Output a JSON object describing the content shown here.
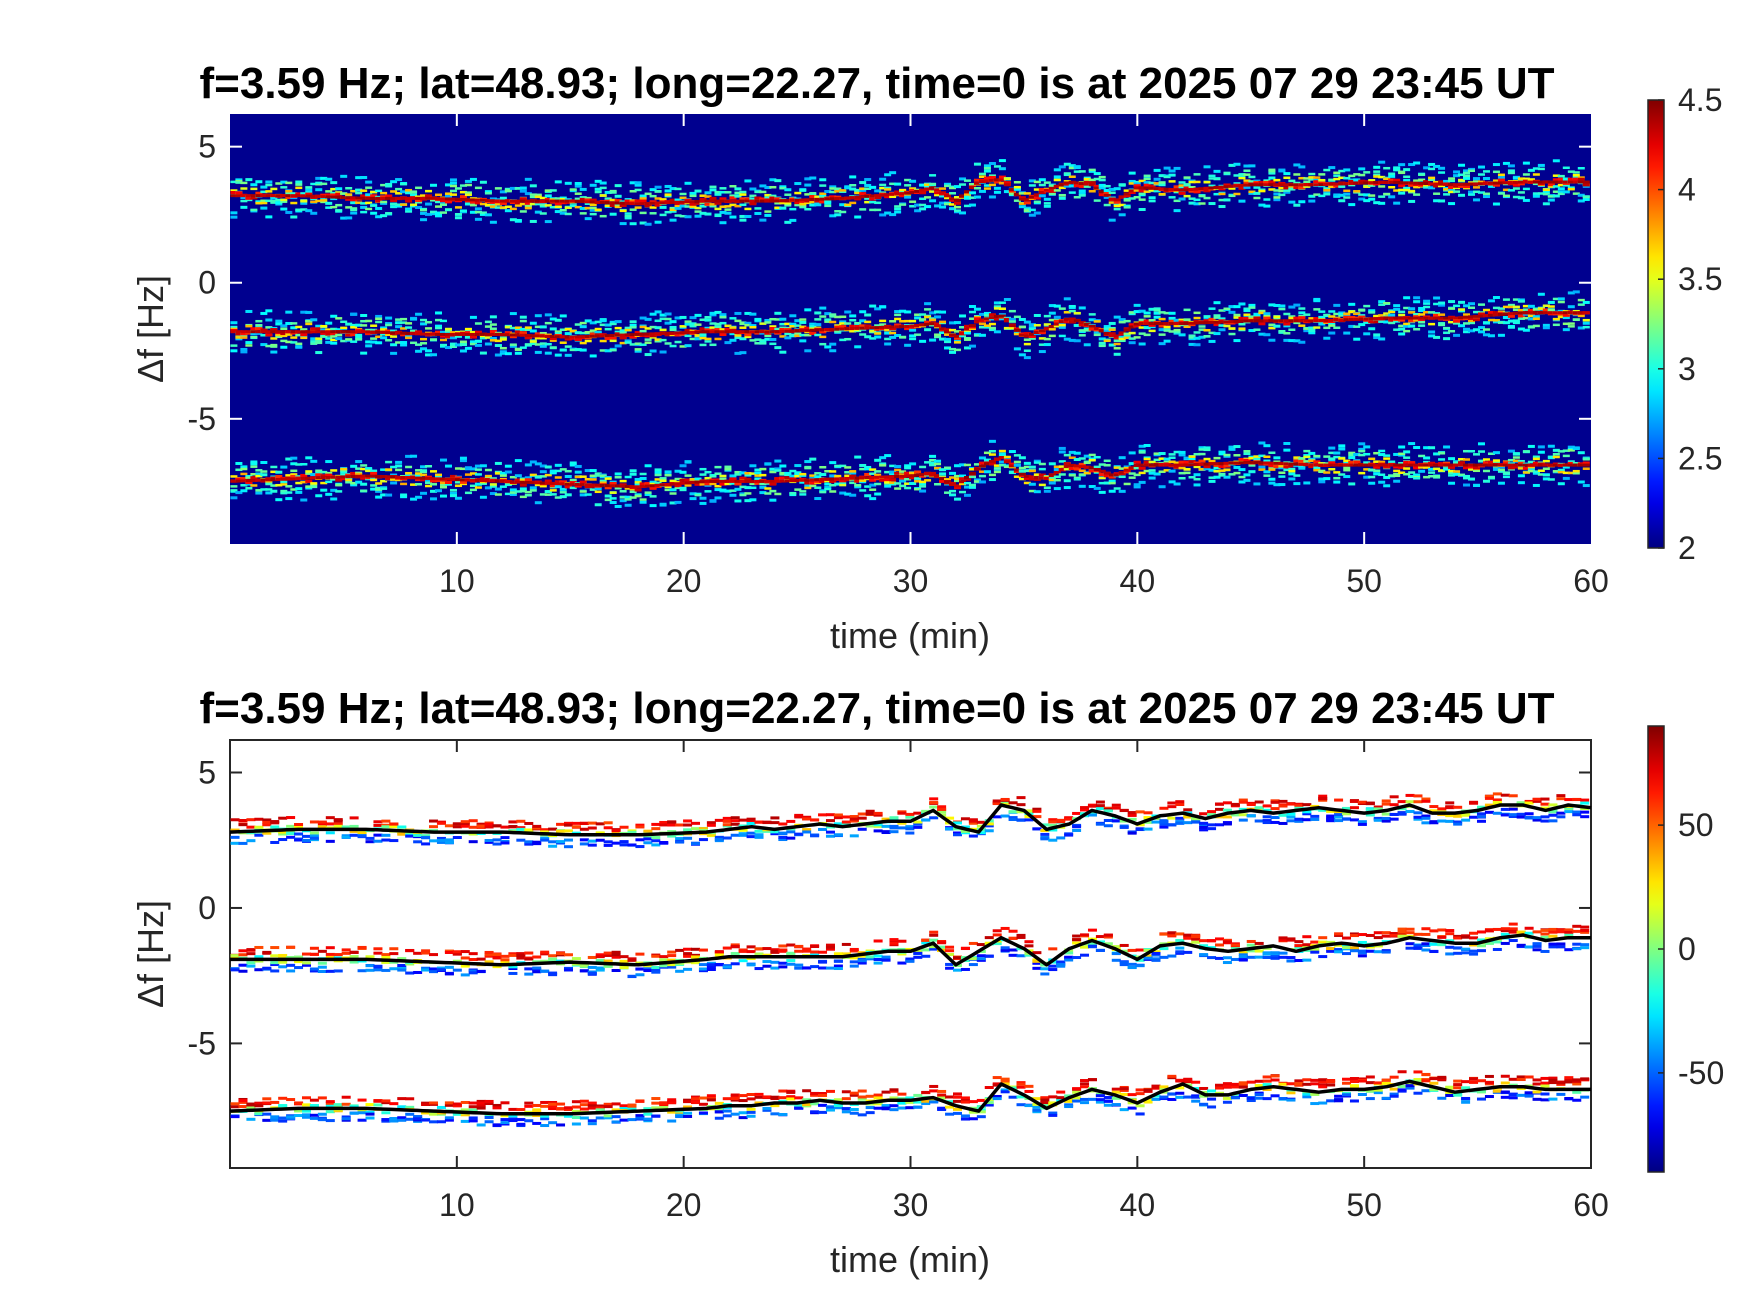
{
  "chart_data": [
    {
      "type": "heatmap",
      "title": "f=3.59 Hz;  lat=48.93; long=22.27, time=0 is at 2025 07 29 23:45 UT",
      "xlabel": "time (min)",
      "ylabel": "Δf [Hz]",
      "xlim": [
        0,
        60
      ],
      "ylim": [
        -9.6,
        6.2
      ],
      "xticks": [
        10,
        20,
        30,
        40,
        50,
        60
      ],
      "yticks": [
        5,
        0,
        -5
      ],
      "colormap": "jet",
      "background_color": "#00008f",
      "colorbar": {
        "range": [
          2,
          4.5
        ],
        "ticks": [
          4.5,
          4,
          3.5,
          3,
          2.5,
          2
        ]
      },
      "series": [
        {
          "t": [
            0,
            3,
            6,
            9,
            12,
            15,
            18,
            21,
            24,
            27,
            30,
            31,
            32,
            33,
            34,
            35,
            36,
            37,
            38,
            39,
            40,
            42,
            45,
            48,
            51,
            54,
            57,
            60
          ],
          "df": [
            3.2,
            3.2,
            3.1,
            3.1,
            3.0,
            3.0,
            2.9,
            3.0,
            3.0,
            3.1,
            3.3,
            3.5,
            3.0,
            3.7,
            3.8,
            3.0,
            3.4,
            3.7,
            3.6,
            3.0,
            3.5,
            3.4,
            3.6,
            3.6,
            3.7,
            3.6,
            3.7,
            3.7
          ]
        },
        {
          "t": [
            0,
            3,
            6,
            9,
            12,
            15,
            18,
            21,
            24,
            27,
            30,
            31,
            32,
            33,
            34,
            35,
            36,
            37,
            38,
            39,
            40,
            42,
            45,
            48,
            51,
            54,
            57,
            60
          ],
          "df": [
            -1.8,
            -1.8,
            -1.8,
            -1.9,
            -1.9,
            -2.0,
            -1.9,
            -1.8,
            -1.8,
            -1.7,
            -1.6,
            -1.5,
            -2.0,
            -1.4,
            -1.2,
            -2.0,
            -1.7,
            -1.3,
            -1.6,
            -2.0,
            -1.5,
            -1.5,
            -1.4,
            -1.4,
            -1.3,
            -1.3,
            -1.1,
            -1.1
          ]
        },
        {
          "t": [
            0,
            3,
            6,
            9,
            12,
            15,
            18,
            21,
            24,
            27,
            30,
            31,
            32,
            33,
            34,
            35,
            36,
            37,
            38,
            39,
            40,
            42,
            45,
            48,
            51,
            54,
            57,
            60
          ],
          "df": [
            -7.3,
            -7.2,
            -7.1,
            -7.2,
            -7.3,
            -7.4,
            -7.5,
            -7.3,
            -7.3,
            -7.2,
            -7.1,
            -7.0,
            -7.5,
            -6.8,
            -6.4,
            -7.1,
            -7.2,
            -6.7,
            -6.8,
            -7.1,
            -6.7,
            -6.7,
            -6.6,
            -6.7,
            -6.7,
            -6.7,
            -6.7,
            -6.7
          ]
        }
      ]
    },
    {
      "type": "scatter",
      "title": "f=3.59 Hz;  lat=48.93; long=22.27, time=0 is at 2025 07 29 23:45 UT",
      "xlabel": "time (min)",
      "ylabel": "Δf [Hz]",
      "xlim": [
        0,
        60
      ],
      "ylim": [
        -9.6,
        6.2
      ],
      "xticks": [
        10,
        20,
        30,
        40,
        50,
        60
      ],
      "yticks": [
        5,
        0,
        -5
      ],
      "colormap": "jet",
      "colorbar": {
        "range": [
          -90,
          90
        ],
        "ticks": [
          50,
          0,
          -50
        ]
      },
      "fit_line_color": "#000000",
      "series": [
        {
          "t": [
            0,
            3,
            6,
            9,
            12,
            15,
            18,
            21,
            22,
            23,
            24,
            25,
            26,
            27,
            28,
            29,
            30,
            31,
            32,
            33,
            34,
            35,
            36,
            37,
            38,
            39,
            40,
            41,
            42,
            43,
            44,
            45,
            46,
            47,
            48,
            49,
            50,
            51,
            52,
            53,
            54,
            55,
            56,
            57,
            58,
            59,
            60
          ],
          "df": [
            2.8,
            2.9,
            2.9,
            2.8,
            2.8,
            2.7,
            2.7,
            2.8,
            2.9,
            3.0,
            2.9,
            3.0,
            3.1,
            3.0,
            3.1,
            3.2,
            3.2,
            3.6,
            3.0,
            2.8,
            3.8,
            3.6,
            2.9,
            3.1,
            3.6,
            3.4,
            3.1,
            3.4,
            3.5,
            3.3,
            3.5,
            3.6,
            3.5,
            3.6,
            3.7,
            3.6,
            3.5,
            3.6,
            3.8,
            3.5,
            3.5,
            3.6,
            3.8,
            3.8,
            3.6,
            3.8,
            3.7
          ]
        },
        {
          "t": [
            0,
            3,
            6,
            9,
            12,
            15,
            18,
            21,
            22,
            23,
            24,
            25,
            26,
            27,
            28,
            29,
            30,
            31,
            32,
            33,
            34,
            35,
            36,
            37,
            38,
            39,
            40,
            41,
            42,
            43,
            44,
            45,
            46,
            47,
            48,
            49,
            50,
            51,
            52,
            53,
            54,
            55,
            56,
            57,
            58,
            59,
            60
          ],
          "df": [
            -1.9,
            -1.9,
            -1.9,
            -2.0,
            -2.1,
            -2.0,
            -2.1,
            -1.9,
            -1.8,
            -1.8,
            -1.8,
            -1.8,
            -1.8,
            -1.8,
            -1.7,
            -1.6,
            -1.6,
            -1.3,
            -2.1,
            -1.6,
            -1.1,
            -1.5,
            -2.1,
            -1.5,
            -1.2,
            -1.5,
            -1.9,
            -1.4,
            -1.3,
            -1.5,
            -1.6,
            -1.5,
            -1.4,
            -1.6,
            -1.4,
            -1.3,
            -1.4,
            -1.3,
            -1.1,
            -1.2,
            -1.3,
            -1.3,
            -1.1,
            -1.0,
            -1.2,
            -1.1,
            -1.1
          ]
        },
        {
          "t": [
            0,
            3,
            6,
            9,
            12,
            15,
            18,
            21,
            22,
            23,
            24,
            25,
            26,
            27,
            28,
            29,
            30,
            31,
            32,
            33,
            34,
            35,
            36,
            37,
            38,
            39,
            40,
            41,
            42,
            43,
            44,
            45,
            46,
            47,
            48,
            49,
            50,
            51,
            52,
            53,
            54,
            55,
            56,
            57,
            58,
            59,
            60
          ],
          "df": [
            -7.5,
            -7.4,
            -7.4,
            -7.5,
            -7.6,
            -7.6,
            -7.5,
            -7.4,
            -7.3,
            -7.3,
            -7.2,
            -7.2,
            -7.1,
            -7.2,
            -7.2,
            -7.1,
            -7.1,
            -7.0,
            -7.3,
            -7.5,
            -6.5,
            -6.9,
            -7.4,
            -7.0,
            -6.7,
            -6.9,
            -7.2,
            -6.8,
            -6.5,
            -6.9,
            -6.9,
            -6.7,
            -6.6,
            -6.7,
            -6.8,
            -6.7,
            -6.7,
            -6.6,
            -6.4,
            -6.6,
            -6.8,
            -6.7,
            -6.6,
            -6.6,
            -6.7,
            -6.7,
            -6.7
          ]
        }
      ]
    }
  ]
}
